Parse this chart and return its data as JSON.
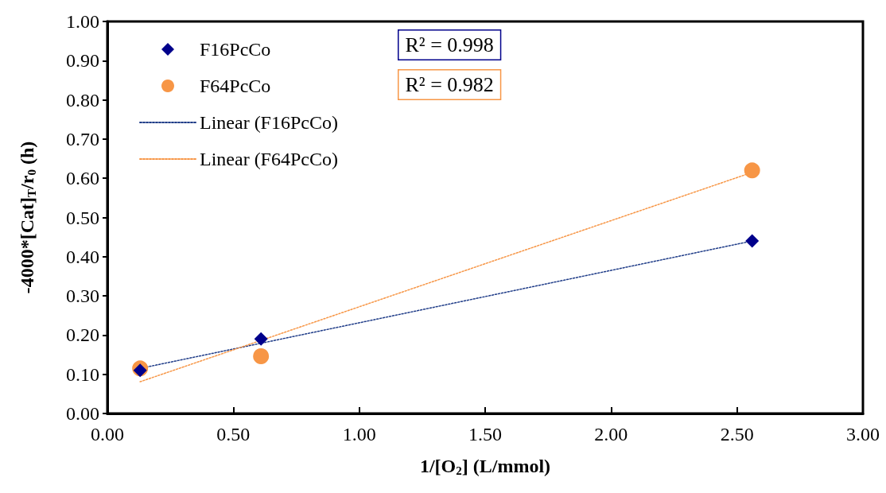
{
  "chart_data": {
    "type": "scatter",
    "xlabel": "1/[O$_{2}$] (L/mmol)",
    "ylabel": "-4000*[Cat]$_{T}$/r$_{0}$ (h)",
    "xlim": [
      0,
      3
    ],
    "xticks": [
      {
        "value": 0,
        "label": "0.00"
      },
      {
        "value": 0.5,
        "label": "0.50"
      },
      {
        "value": 1,
        "label": "1.00"
      },
      {
        "value": 1.5,
        "label": "1.50"
      },
      {
        "value": 2,
        "label": "2.00"
      },
      {
        "value": 2.5,
        "label": "2.50"
      },
      {
        "value": 3,
        "label": "3.00"
      }
    ],
    "ylim": [
      0,
      1
    ],
    "yticks": [
      {
        "value": 0,
        "label": "0.00"
      },
      {
        "value": 0.1,
        "label": "0.10"
      },
      {
        "value": 0.2,
        "label": "0.20"
      },
      {
        "value": 0.3,
        "label": "0.30"
      },
      {
        "value": 0.4,
        "label": "0.40"
      },
      {
        "value": 0.5,
        "label": "0.50"
      },
      {
        "value": 0.6,
        "label": "0.60"
      },
      {
        "value": 0.7,
        "label": "0.70"
      },
      {
        "value": 0.8,
        "label": "0.80"
      },
      {
        "value": 0.9,
        "label": "0.90"
      },
      {
        "value": 1,
        "label": "1.00"
      }
    ],
    "grid": false,
    "legend": "top left",
    "annotations": [
      "R² = 0.998",
      "R² = 0.982"
    ],
    "series": [
      {
        "name": "F16PcCo",
        "marker": "diamond",
        "color": "#00008b",
        "x": [
          0.13,
          0.61,
          2.56
        ],
        "values": [
          0.11,
          0.19,
          0.44
        ]
      },
      {
        "name": "F64PcCo",
        "marker": "circle",
        "color": "#f79646",
        "x": [
          0.13,
          0.61,
          2.56
        ],
        "values": [
          0.115,
          0.146,
          0.62
        ]
      },
      {
        "name": "Linear (F16PcCo)",
        "type": "line",
        "marker": "none",
        "line_style": "dotted",
        "color": "#1f3c88",
        "x": [
          0.13,
          2.56
        ],
        "values": [
          0.115,
          0.44
        ]
      },
      {
        "name": "Linear (F64PcCo)",
        "type": "line",
        "marker": "none",
        "line_style": "dotted",
        "color": "#f79646",
        "x": [
          0.13,
          2.56
        ],
        "values": [
          0.081,
          0.615
        ]
      }
    ]
  }
}
